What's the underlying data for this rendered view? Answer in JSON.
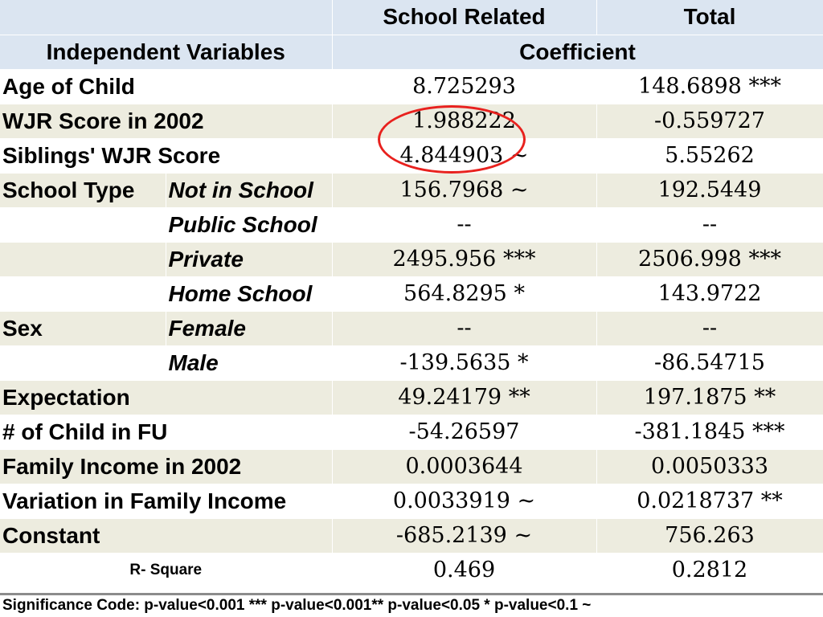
{
  "header": {
    "col_school_related": "School Related",
    "col_total": "Total",
    "independent_variables": "Independent Variables",
    "coefficient": "Coefficient"
  },
  "rows": [
    {
      "var": "Age of Child",
      "level": "",
      "school": "8.725293",
      "total": "148.6898 ***"
    },
    {
      "var": "WJR Score in 2002",
      "level": "",
      "school": "1.988222",
      "total": "-0.559727"
    },
    {
      "var": "Siblings' WJR Score",
      "level": "",
      "school": "4.844903 ~",
      "total": "5.55262"
    },
    {
      "var": "School Type",
      "level": "Not in School",
      "school": "156.7968 ~",
      "total": "192.5449"
    },
    {
      "var": "",
      "level": "Public School",
      "school": "--",
      "total": "--"
    },
    {
      "var": "",
      "level": "Private",
      "school": "2495.956 ***",
      "total": "2506.998 ***"
    },
    {
      "var": "",
      "level": "Home School",
      "school": "564.8295 *",
      "total": "143.9722"
    },
    {
      "var": "Sex",
      "level": "Female",
      "school": "--",
      "total": "--"
    },
    {
      "var": "",
      "level": "Male",
      "school": "-139.5635 *",
      "total": "-86.54715"
    },
    {
      "var": "Expectation",
      "level": "",
      "school": "49.24179 **",
      "total": "197.1875 **"
    },
    {
      "var": "# of Child in FU",
      "level": "",
      "school": "-54.26597",
      "total": "-381.1845 ***"
    },
    {
      "var": "Family Income in 2002",
      "level": "",
      "school": "0.0003644",
      "total": "0.0050333"
    },
    {
      "var": "Variation in Family Income",
      "level": "",
      "school": "0.0033919 ~",
      "total": "0.0218737 **"
    },
    {
      "var": "Constant",
      "level": "",
      "school": "-685.2139 ~",
      "total": "756.263"
    }
  ],
  "r_square": {
    "label": "R- Square",
    "school": "0.469",
    "total": "0.2812"
  },
  "significance_note": "Significance Code: p-value<0.001 *** p-value<0.001** p-value<0.05 * p-value<0.1 ~",
  "colors": {
    "header_bg": "#dbe5f1",
    "stripe_bg": "#edecdf",
    "highlight": "#e8211e"
  }
}
